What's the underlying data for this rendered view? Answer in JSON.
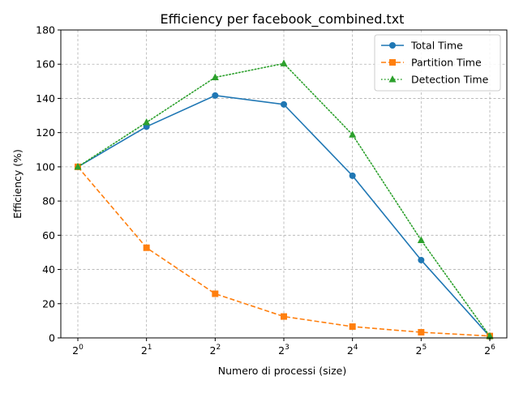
{
  "chart_data": {
    "type": "line",
    "title": "Efficiency per facebook_combined.txt",
    "xlabel": "Numero di processi (size)",
    "ylabel": "Efficiency (%)",
    "x_scale": "log2",
    "x": [
      1,
      2,
      4,
      8,
      16,
      32,
      64
    ],
    "x_tick_labels": [
      {
        "base": "2",
        "exp": "0"
      },
      {
        "base": "2",
        "exp": "1"
      },
      {
        "base": "2",
        "exp": "2"
      },
      {
        "base": "2",
        "exp": "3"
      },
      {
        "base": "2",
        "exp": "4"
      },
      {
        "base": "2",
        "exp": "5"
      },
      {
        "base": "2",
        "exp": "6"
      }
    ],
    "ylim": [
      0,
      180
    ],
    "y_ticks": [
      "0",
      "20",
      "40",
      "60",
      "80",
      "100",
      "120",
      "140",
      "160",
      "180"
    ],
    "grid": true,
    "legend_position": "top-right",
    "series": [
      {
        "name": "Total Time",
        "color": "#1f77b4",
        "marker": "circle",
        "line_style": "solid",
        "values": [
          100,
          123.5,
          141.7,
          136.5,
          94.8,
          45.5,
          0.8
        ]
      },
      {
        "name": "Partition Time",
        "color": "#ff7f0e",
        "marker": "square",
        "line_style": "dashed",
        "values": [
          100,
          52.7,
          25.8,
          12.5,
          6.6,
          3.3,
          1.1
        ]
      },
      {
        "name": "Detection Time",
        "color": "#2ca02c",
        "marker": "triangle",
        "line_style": "dotted",
        "values": [
          100,
          126,
          152.3,
          160.4,
          118.8,
          57.1,
          1.0
        ]
      }
    ]
  }
}
